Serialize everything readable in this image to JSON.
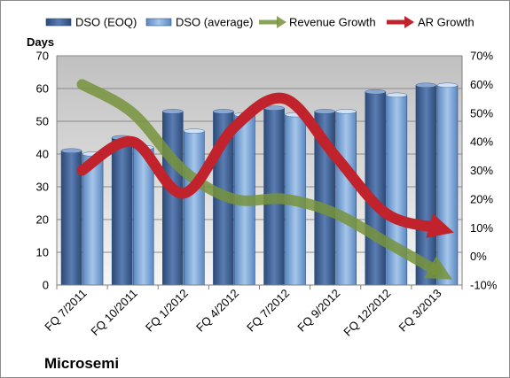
{
  "chart_data": {
    "type": "bar",
    "title": "",
    "ylabel": "Days",
    "ylim": [
      0,
      70
    ],
    "y_ticks": [
      "0",
      "10",
      "20",
      "30",
      "40",
      "50",
      "60",
      "70"
    ],
    "y2lim": [
      -10,
      70
    ],
    "y2_ticks": [
      "-10%",
      "0%",
      "10%",
      "20%",
      "30%",
      "40%",
      "50%",
      "60%",
      "70%"
    ],
    "categories": [
      "FQ 7/2011",
      "FQ 10/2011",
      "FQ 1/2012",
      "FQ 4/2012",
      "FQ 7/2012",
      "FQ 9/2012",
      "FQ 12/2012",
      "FQ 3/2013"
    ],
    "series": [
      {
        "name": "DSO (EOQ)",
        "type": "bar",
        "axis": "left",
        "color": "#4f6fa3",
        "values": [
          41,
          45,
          53,
          53,
          54,
          53,
          59,
          61
        ]
      },
      {
        "name": "DSO (average)",
        "type": "bar",
        "axis": "left",
        "color": "#88aedc",
        "values": [
          40,
          42,
          47,
          52,
          52,
          53,
          58,
          61
        ]
      },
      {
        "name": "Revenue Growth",
        "type": "line",
        "axis": "right",
        "unit": "%",
        "color": "#77933c",
        "values": [
          60,
          50,
          30,
          20,
          20,
          15,
          5,
          -5
        ]
      },
      {
        "name": "AR Growth",
        "type": "line",
        "axis": "right",
        "unit": "%",
        "color": "#c0232c",
        "values": [
          30,
          40,
          22,
          45,
          55,
          35,
          15,
          10
        ]
      }
    ],
    "grid": true,
    "legend": "top"
  },
  "footer": {
    "company": "Microsemi"
  }
}
